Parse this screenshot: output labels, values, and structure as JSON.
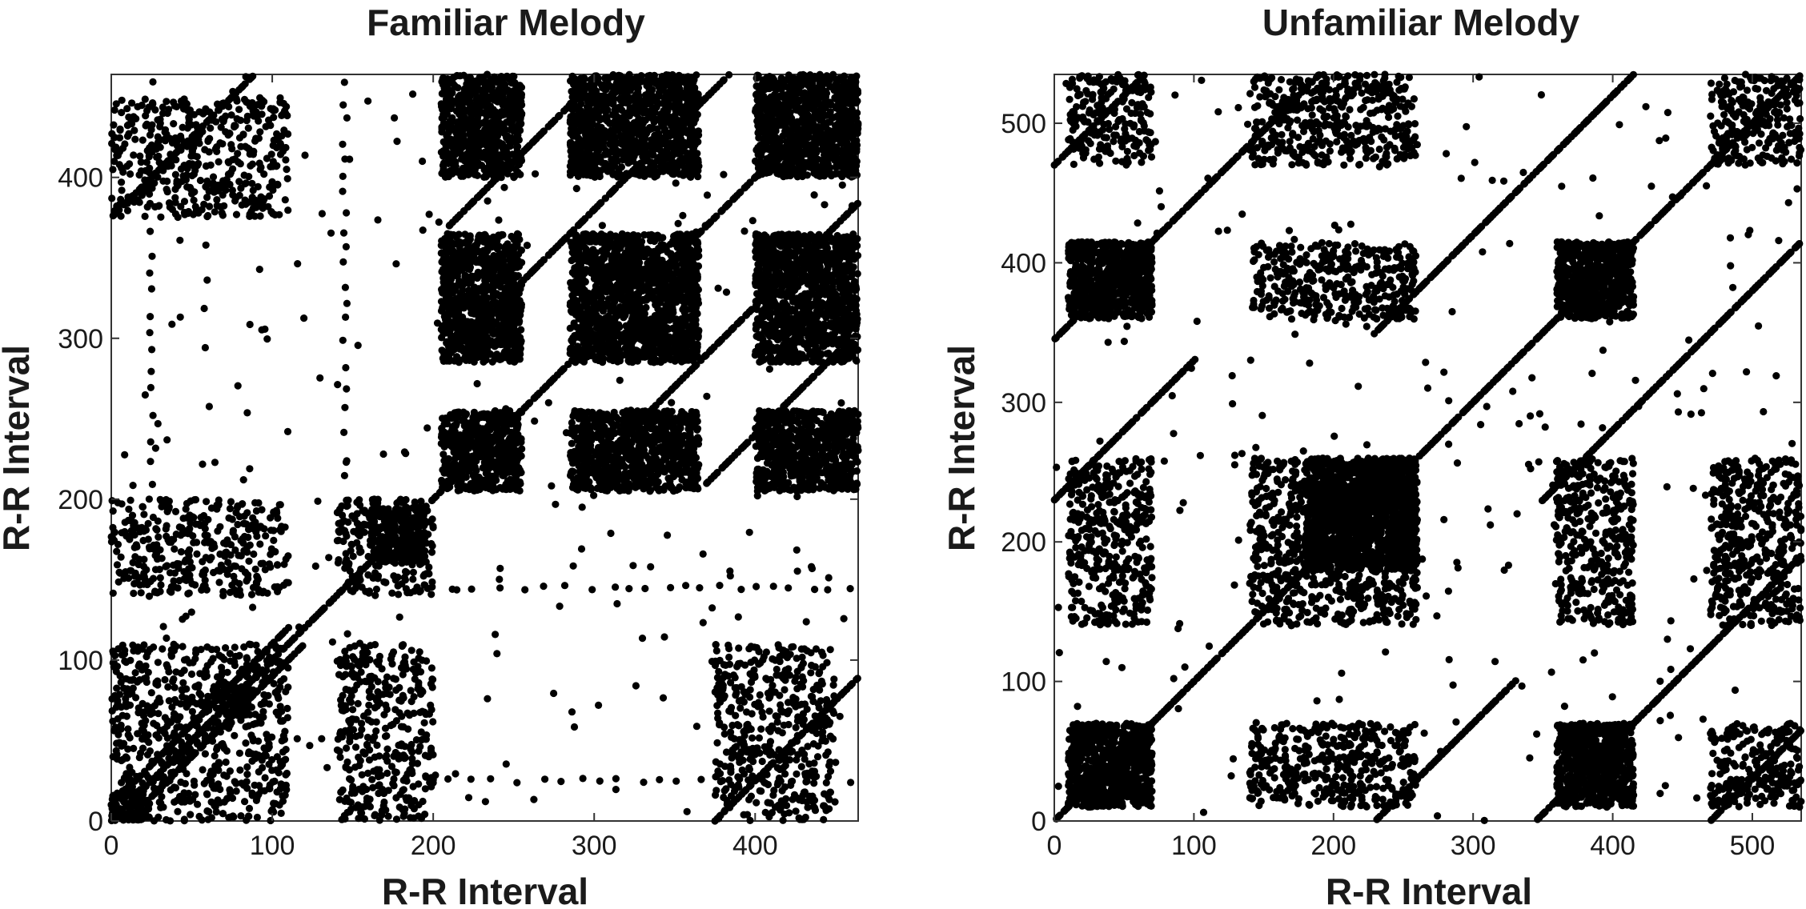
{
  "chart_data": [
    {
      "type": "scatter",
      "chart_kind": "recurrence plot",
      "title": "Familiar Melody",
      "xlabel": "R-R Interval",
      "ylabel": "R-R Interval",
      "xlim": [
        0,
        464
      ],
      "ylim": [
        0,
        464
      ],
      "xticks": [
        0,
        100,
        200,
        300,
        400
      ],
      "yticks": [
        0,
        100,
        200,
        300,
        400
      ],
      "grid": false,
      "marker_color": "#000000",
      "recurrent_blocks": [
        {
          "x": [
            0,
            20
          ],
          "y": [
            0,
            20
          ]
        },
        {
          "x": [
            65,
            85
          ],
          "y": [
            65,
            85
          ]
        },
        {
          "x": [
            160,
            195
          ],
          "y": [
            160,
            195
          ]
        },
        {
          "x": [
            205,
            255
          ],
          "y": [
            205,
            255
          ]
        },
        {
          "x": [
            205,
            255
          ],
          "y": [
            285,
            365
          ]
        },
        {
          "x": [
            205,
            255
          ],
          "y": [
            400,
            464
          ]
        },
        {
          "x": [
            285,
            365
          ],
          "y": [
            205,
            255
          ]
        },
        {
          "x": [
            285,
            365
          ],
          "y": [
            285,
            365
          ]
        },
        {
          "x": [
            285,
            365
          ],
          "y": [
            400,
            464
          ]
        },
        {
          "x": [
            400,
            464
          ],
          "y": [
            205,
            255
          ]
        },
        {
          "x": [
            400,
            464
          ],
          "y": [
            285,
            365
          ]
        },
        {
          "x": [
            400,
            464
          ],
          "y": [
            400,
            464
          ]
        }
      ],
      "sparse_blocks": [
        {
          "x": [
            0,
            110
          ],
          "y": [
            140,
            200
          ]
        },
        {
          "x": [
            140,
            200
          ],
          "y": [
            0,
            110
          ]
        },
        {
          "x": [
            0,
            110
          ],
          "y": [
            0,
            110
          ]
        },
        {
          "x": [
            140,
            200
          ],
          "y": [
            140,
            200
          ]
        },
        {
          "x": [
            0,
            110
          ],
          "y": [
            375,
            450
          ]
        },
        {
          "x": [
            375,
            450
          ],
          "y": [
            0,
            110
          ]
        }
      ],
      "diagonal_lines": [
        {
          "offset": 0,
          "range": [
            0,
            464
          ]
        },
        {
          "offset": 10,
          "range": [
            0,
            110
          ]
        },
        {
          "offset": -10,
          "range": [
            0,
            110
          ]
        },
        {
          "offset": 80,
          "range": [
            210,
            464
          ]
        },
        {
          "offset": -80,
          "range": [
            210,
            464
          ]
        },
        {
          "offset": 160,
          "range": [
            210,
            300
          ]
        },
        {
          "offset": -160,
          "range": [
            210,
            300
          ]
        },
        {
          "offset": 375,
          "range": [
            0,
            90
          ]
        },
        {
          "offset": -375,
          "range": [
            0,
            90
          ]
        }
      ],
      "horizontal_streaks": [
        {
          "y": 145,
          "x": [
            190,
            464
          ]
        },
        {
          "y": 25,
          "x": [
            200,
            464
          ]
        }
      ]
    },
    {
      "type": "scatter",
      "chart_kind": "recurrence plot",
      "title": "Unfamiliar Melody",
      "xlabel": "R-R Interval",
      "ylabel": "R-R Interval",
      "xlim": [
        0,
        535
      ],
      "ylim": [
        0,
        535
      ],
      "xticks": [
        0,
        100,
        200,
        300,
        400,
        500
      ],
      "yticks": [
        0,
        100,
        200,
        300,
        400,
        500
      ],
      "grid": false,
      "marker_color": "#000000",
      "recurrent_blocks": [
        {
          "x": [
            10,
            70
          ],
          "y": [
            10,
            70
          ]
        },
        {
          "x": [
            10,
            70
          ],
          "y": [
            360,
            415
          ]
        },
        {
          "x": [
            360,
            415
          ],
          "y": [
            10,
            70
          ]
        },
        {
          "x": [
            360,
            415
          ],
          "y": [
            360,
            415
          ]
        },
        {
          "x": [
            180,
            260
          ],
          "y": [
            180,
            260
          ]
        }
      ],
      "sparse_blocks": [
        {
          "x": [
            10,
            70
          ],
          "y": [
            140,
            260
          ]
        },
        {
          "x": [
            140,
            260
          ],
          "y": [
            10,
            70
          ]
        },
        {
          "x": [
            140,
            260
          ],
          "y": [
            140,
            260
          ]
        },
        {
          "x": [
            140,
            260
          ],
          "y": [
            470,
            535
          ]
        },
        {
          "x": [
            470,
            535
          ],
          "y": [
            140,
            260
          ]
        },
        {
          "x": [
            10,
            70
          ],
          "y": [
            470,
            535
          ]
        },
        {
          "x": [
            470,
            535
          ],
          "y": [
            10,
            70
          ]
        },
        {
          "x": [
            360,
            415
          ],
          "y": [
            140,
            260
          ]
        },
        {
          "x": [
            140,
            260
          ],
          "y": [
            360,
            415
          ]
        },
        {
          "x": [
            470,
            535
          ],
          "y": [
            470,
            535
          ]
        }
      ],
      "diagonal_lines": [
        {
          "offset": 0,
          "range": [
            0,
            535
          ]
        },
        {
          "offset": 345,
          "range": [
            0,
            190
          ]
        },
        {
          "offset": -345,
          "range": [
            0,
            190
          ]
        },
        {
          "offset": 470,
          "range": [
            0,
            65
          ]
        },
        {
          "offset": -470,
          "range": [
            0,
            65
          ]
        },
        {
          "offset": 120,
          "range": [
            230,
            415
          ]
        },
        {
          "offset": -120,
          "range": [
            230,
            415
          ]
        },
        {
          "offset": 230,
          "range": [
            0,
            100
          ]
        },
        {
          "offset": -230,
          "range": [
            0,
            100
          ]
        }
      ],
      "horizontal_streaks": [
        {
          "y": 480,
          "x": [
            140,
            260
          ]
        },
        {
          "y": 360,
          "x": [
            170,
            260
          ]
        },
        {
          "y": 170,
          "x": [
            140,
            260
          ]
        },
        {
          "y": 45,
          "x": [
            180,
            260
          ]
        }
      ]
    }
  ]
}
